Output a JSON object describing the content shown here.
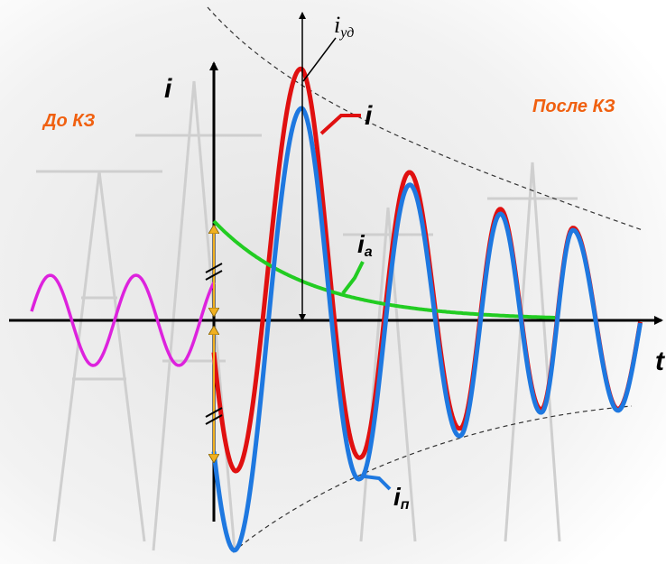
{
  "axes": {
    "y": "i",
    "x": "t"
  },
  "regions": {
    "before": "До КЗ",
    "after": "После КЗ"
  },
  "labels": {
    "peak": {
      "main": "i",
      "sub": "уд"
    },
    "total": "i",
    "aperiodic": {
      "main": "i",
      "sub": "а"
    },
    "periodic": {
      "main": "i",
      "sub": "п"
    }
  }
}
